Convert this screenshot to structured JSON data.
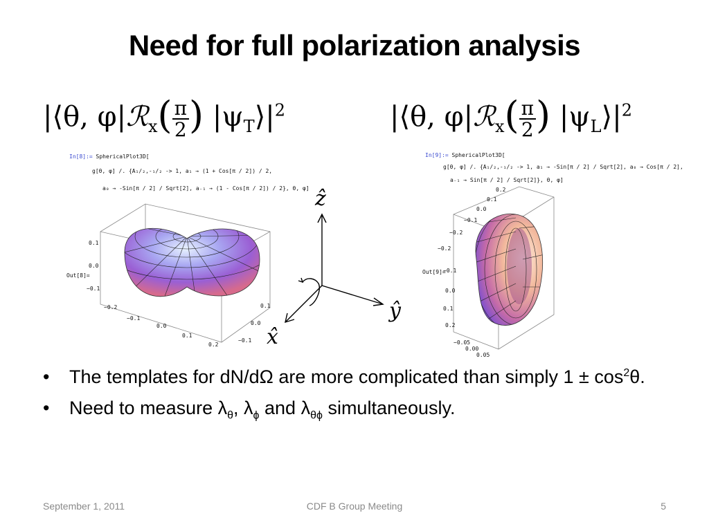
{
  "slide": {
    "title": "Need for full polarization analysis"
  },
  "formulas": {
    "left": {
      "prefix": "|⟨θ, φ|",
      "op": "ℛ",
      "op_sub": "x",
      "frac_num": "π",
      "frac_den": "2",
      "ket": "|ψ",
      "ket_sub": "T",
      "suffix": "⟩|",
      "power": "2"
    },
    "right": {
      "prefix": "|⟨θ, φ|",
      "op": "ℛ",
      "op_sub": "x",
      "frac_num": "π",
      "frac_den": "2",
      "ket": "|ψ",
      "ket_sub": "L",
      "suffix": "⟩|",
      "power": "2"
    }
  },
  "code_left": {
    "in_label": "In[8]:=",
    "line1": "SphericalPlot3D[",
    "line2": "g[θ, φ] /. {A₁/₂,-₁/₂ -> 1, a₁ → (1 + Cos[π / 2]) / 2,",
    "line3": "a₀ → -Sin[π / 2] / Sqrt[2], a₋₁ → (1 - Cos[π / 2]) / 2}, θ, φ]",
    "out_label": "Out[8]="
  },
  "code_right": {
    "in_label": "In[9]:=",
    "line1": "SphericalPlot3D[",
    "line2": "g[θ, φ] /. {A₁/₂,-₁/₂ -> 1, a₁ → -Sin[π / 2] / Sqrt[2], a₀ → Cos[π / 2],",
    "line3": "a₋₁ → Sin[π / 2] / Sqrt[2]}, θ, φ]",
    "out_label": "Out[9]="
  },
  "plot_left_ticks": {
    "vertical": [
      "0.1",
      "0.0",
      "−0.1"
    ],
    "front": [
      "−0.2",
      "−0.1",
      "0.0",
      "0.1",
      "0.2"
    ],
    "side": [
      "0.1",
      "0.0",
      "−0.1"
    ]
  },
  "plot_right_ticks": {
    "vertical": [
      "0.2",
      "0.1",
      "0.0",
      "−0.1",
      "−0.2"
    ],
    "left": [
      "−0.2",
      "−0.1",
      "0.0",
      "0.1",
      "0.2"
    ],
    "front": [
      "−0.05",
      "0.00",
      "0.05"
    ]
  },
  "axes": {
    "z": "ẑ",
    "y": "ŷ",
    "x": "x̂"
  },
  "bullets": [
    {
      "text_a": "The templates for dN/dΩ are more complicated than simply 1 ± cos",
      "sup": "2",
      "text_b": "θ."
    },
    {
      "text_a": "Need to measure λ",
      "sub1": "θ",
      "mid1": ", λ",
      "sub2": "ϕ",
      "mid2": " and λ",
      "sub3": "θϕ",
      "text_b": " simultaneously."
    }
  ],
  "footer": {
    "date": "September 1, 2011",
    "event": "CDF B Group Meeting",
    "page": "5"
  }
}
